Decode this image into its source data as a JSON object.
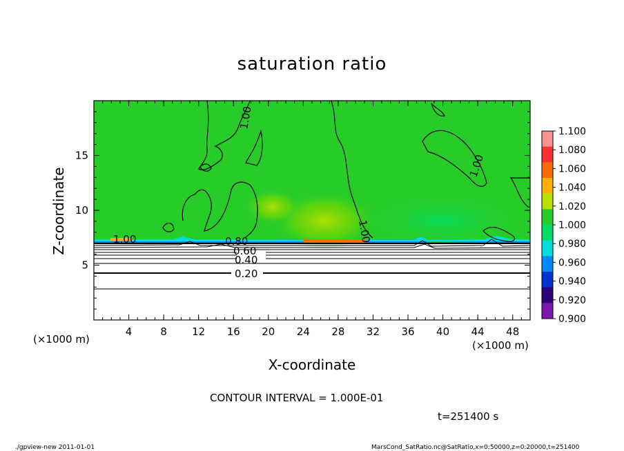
{
  "chart_data": {
    "type": "heatmap",
    "title": "saturation ratio",
    "xlabel": "X-coordinate",
    "ylabel": "Z-coordinate",
    "x_unit_label": "(×1000 m)",
    "y_unit_label": "(×1000 m)",
    "xlim": [
      0,
      50
    ],
    "ylim": [
      0,
      20
    ],
    "x_ticks": [
      "4",
      "8",
      "12",
      "16",
      "20",
      "24",
      "28",
      "32",
      "36",
      "40",
      "44",
      "48"
    ],
    "y_ticks": [
      "5",
      "10",
      "15"
    ],
    "colorbar": {
      "levels": [
        "1.100",
        "1.080",
        "1.060",
        "1.040",
        "1.020",
        "1.000",
        "0.980",
        "0.960",
        "0.940",
        "0.920",
        "0.900"
      ],
      "colors": [
        "#ff9090",
        "#ff3030",
        "#ff6a00",
        "#ffb000",
        "#b8e000",
        "#28cc28",
        "#00dd66",
        "#00dddd",
        "#0088ff",
        "#0030d0",
        "#2c0078",
        "#7a18b0"
      ]
    },
    "field": {
      "background_above": "#28cc28",
      "below_boundary": "#ffffff",
      "boundary_z": 7.1
    },
    "contour_labels": [
      "1.00",
      "1.00",
      "1.00",
      "1.00",
      "0.80",
      "0.60",
      "0.40",
      "0.20"
    ],
    "contour_interval_text": "CONTOUR INTERVAL = 1.000E-01",
    "time_text": "t=251400 s"
  },
  "footer": {
    "left": "./gpview-new  2011-01-01",
    "right": "MarsCond_SatRatio.nc@SatRatio,x=0:50000,z=0:20000,t=251400"
  }
}
